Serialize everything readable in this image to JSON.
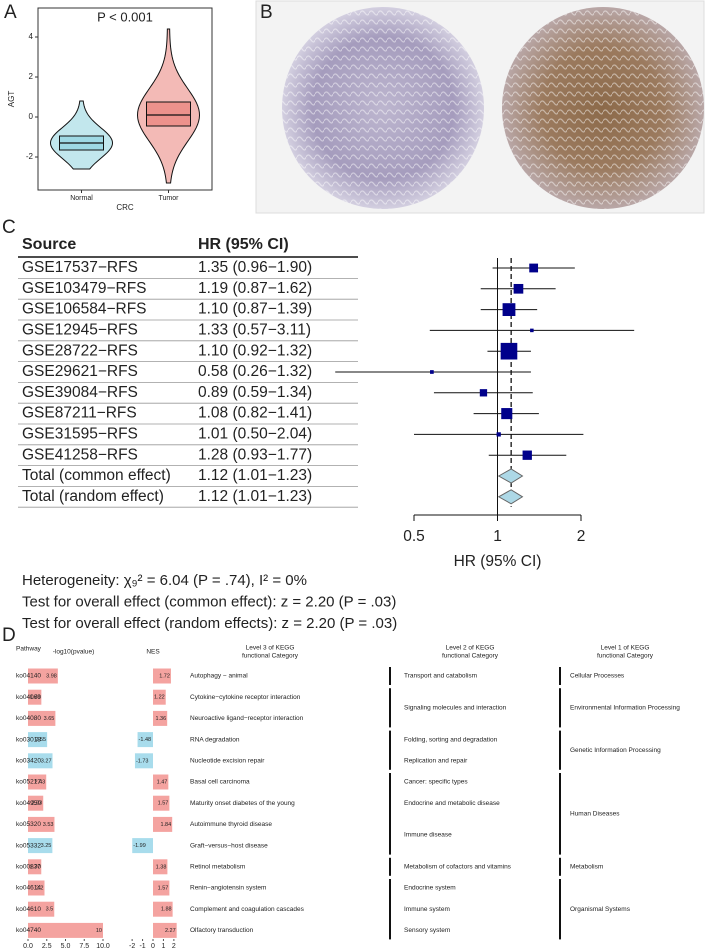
{
  "panel_labels": [
    "A",
    "B",
    "C",
    "D"
  ],
  "chart_data": [
    {
      "type": "violin",
      "title": "P < 0.001",
      "y_label": "AGT",
      "x_label": "CRC",
      "categories": [
        "Normal",
        "Tumor"
      ],
      "colors": [
        "#8fd3df",
        "#e9827a"
      ],
      "boxes": [
        {
          "min": -2.6,
          "q1": -1.65,
          "median": -1.3,
          "q3": -0.95,
          "max": 0.8
        },
        {
          "min": -3.3,
          "q1": -0.45,
          "median": 0.1,
          "q3": 0.75,
          "max": 4.4
        }
      ],
      "ylim": [
        -3.65,
        5.45
      ],
      "yticks": [
        -2,
        0,
        2,
        4
      ]
    },
    {
      "type": "forest",
      "columns": [
        "Source",
        "HR (95% CI)"
      ],
      "categories": [
        "GSE17537−RFS",
        "GSE103479−RFS",
        "GSE106584−RFS",
        "GSE12945−RFS",
        "GSE28722−RFS",
        "GSE29621−RFS",
        "GSE39084−RFS",
        "GSE87211−RFS",
        "GSE31595−RFS",
        "GSE41258−RFS"
      ],
      "values": [
        1.35,
        1.19,
        1.1,
        1.33,
        1.1,
        0.58,
        0.89,
        1.08,
        1.01,
        1.28
      ],
      "lower": [
        0.96,
        0.87,
        0.87,
        0.57,
        0.92,
        0.26,
        0.59,
        0.82,
        0.5,
        0.93
      ],
      "upper": [
        1.9,
        1.62,
        1.39,
        3.11,
        1.32,
        1.32,
        1.34,
        1.41,
        2.04,
        1.77
      ],
      "value_labels": [
        "1.35 (0.96−1.90)",
        "1.19 (0.87−1.62)",
        "1.10 (0.87−1.39)",
        "1.33 (0.57−3.11)",
        "1.10 (0.92−1.32)",
        "0.58 (0.26−1.32)",
        "0.89 (0.59−1.34)",
        "1.08 (0.82−1.41)",
        "1.01 (0.50−2.04)",
        "1.28 (0.93−1.77)"
      ],
      "totals": {
        "categories": [
          "Total (common effect)",
          "Total (random effect)"
        ],
        "values": [
          1.12,
          1.12
        ],
        "lower": [
          1.01,
          1.01
        ],
        "upper": [
          1.23,
          1.23
        ],
        "value_labels": [
          "1.12 (1.01−1.23)",
          "1.12 (1.01−1.23)"
        ]
      },
      "ref_line": 1,
      "x_label": "HR (95% CI)",
      "log_x": true,
      "xlim": [
        0.5,
        2
      ],
      "xticks": [
        0.5,
        1,
        2
      ],
      "colors": {
        "square": "#00008b",
        "diamond": "#add8e6"
      },
      "notes": [
        "Heterogeneity: χ₉² = 6.04 (P = .74), I² = 0%",
        "Test for overall effect (common effect): z = 2.20 (P = .03)",
        "Test for overall effect (random effects): z = 2.20 (P = .03)"
      ]
    },
    {
      "type": "kegg",
      "pathway_header": "Pathway",
      "categories": [
        "ko04140",
        "ko04060",
        "ko04080",
        "ko03018",
        "ko03420",
        "ko05217",
        "ko04950",
        "ko05320",
        "ko05332",
        "ko00830",
        "ko04614",
        "ko04610",
        "ko04740"
      ],
      "series": [
        {
          "name": "-log10(pvalue)",
          "values": [
            3.98,
            1.78,
            3.65,
            2.55,
            3.27,
            2.43,
            2.03,
            3.53,
            3.25,
            1.77,
            2.2,
            3.5,
            10
          ],
          "xlim": [
            0,
            10
          ],
          "xticks": [
            {
              "value": 0,
              "label": "0.0"
            },
            {
              "value": 2.5,
              "label": "2.5"
            },
            {
              "value": 5,
              "label": "5.0"
            },
            {
              "value": 7.5,
              "label": "7.5"
            },
            {
              "value": 10,
              "label": "10.0"
            }
          ]
        },
        {
          "name": "NES",
          "values": [
            1.72,
            1.22,
            1.36,
            -1.48,
            -1.73,
            1.47,
            1.57,
            1.84,
            -1.99,
            1.38,
            1.57,
            1.88,
            2.27
          ],
          "xlim": [
            -2.3,
            2.3
          ],
          "xticks": [
            -2,
            -1,
            0,
            1,
            2
          ]
        }
      ],
      "level_headers": [
        [
          "Level 3 of KEGG",
          "functional Category"
        ],
        [
          "Level 2 of KEGG",
          "functional Category"
        ],
        [
          "Level 1 of KEGG",
          "functional Category"
        ]
      ],
      "level3": [
        "Autophagy − animal",
        "Cytokine−cytokine receptor interaction",
        "Neuroactive ligand−receptor interaction",
        "RNA degradation",
        "Nucleotide excision repair",
        "Basal cell carcinoma",
        "Maturity onset diabetes of the young",
        "Autoimmune thyroid disease",
        "Graft−versus−host disease",
        "Retinol metabolism",
        "Renin−angiotensin system",
        "Complement and coagulation cascades",
        "Olfactory transduction"
      ],
      "level2": [
        "Transport and catabolism",
        "Signaling molecules and interaction",
        null,
        "Folding, sorting and degradation",
        "Replication and repair",
        "Cancer: specific types",
        "Endocrine and metabolic disease",
        "Immune disease",
        null,
        "Metabolism of cofactors and vitamins",
        "Endocrine system",
        "Immune system",
        "Sensory system"
      ],
      "level1": [
        "Cellular Processes",
        "Environmental Information Processing",
        null,
        "Genetic Information Processing",
        null,
        "Human Diseases",
        null,
        null,
        null,
        "Metabolism",
        "Organismal Systems",
        null,
        null
      ],
      "colors": {
        "up_bar": "#f4a3a0",
        "down_bar": "#a8dcec",
        "up_text": "#e0483e",
        "down_text": "#3aa7cf"
      }
    }
  ]
}
